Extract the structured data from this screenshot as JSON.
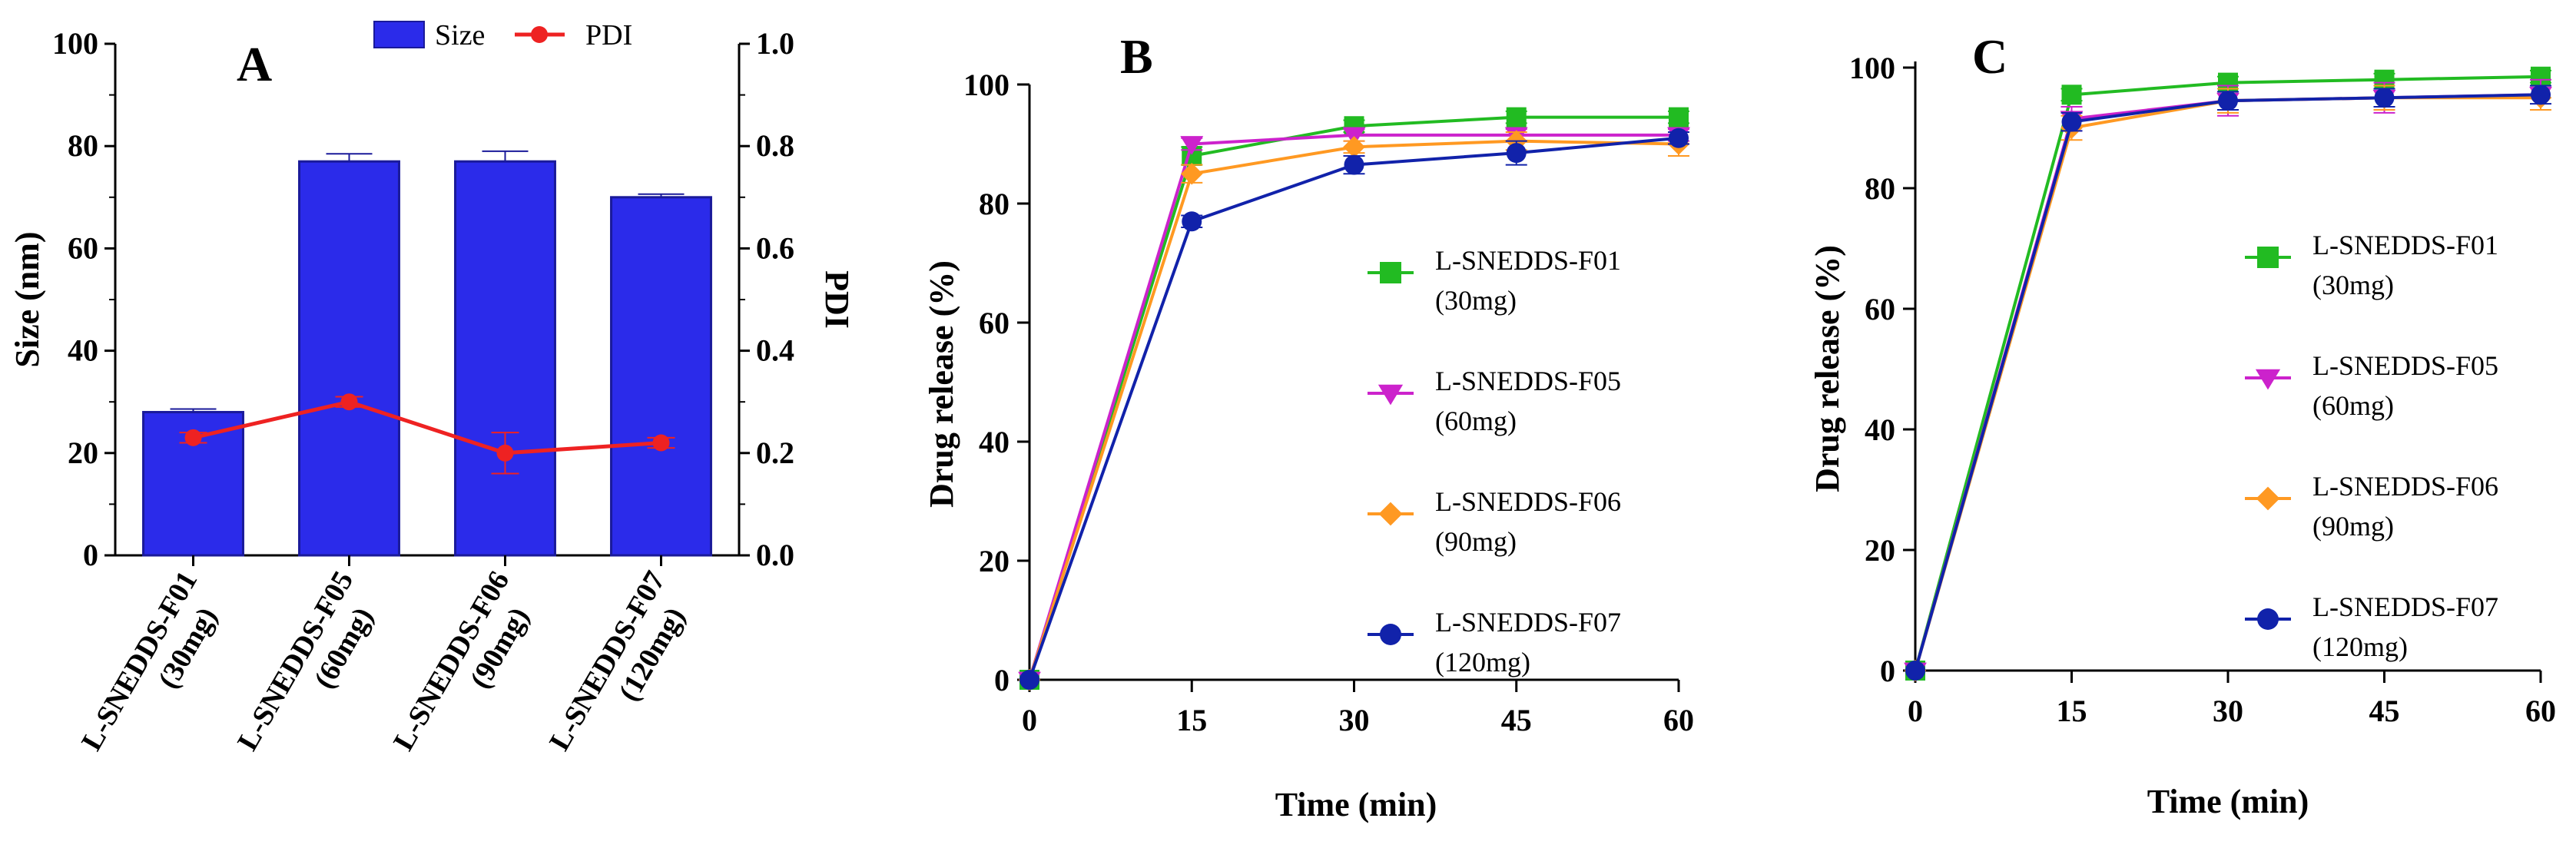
{
  "chart_data": [
    {
      "panel": "A",
      "type": "bar",
      "categories": [
        {
          "line1": "L-SNEDDS-F01",
          "line2": "(30mg)"
        },
        {
          "line1": "L-SNEDDS-F05",
          "line2": "(60mg)"
        },
        {
          "line1": "L-SNEDDS-F06",
          "line2": "(90mg)"
        },
        {
          "line1": "L-SNEDDS-F07",
          "line2": "(120mg)"
        }
      ],
      "series": [
        {
          "name": "Size",
          "kind": "bar",
          "axis": "left",
          "color": "#2b2bea",
          "values": [
            28,
            77,
            77,
            70
          ],
          "errors": [
            0.6,
            1.5,
            2.0,
            0.6
          ]
        },
        {
          "name": "PDI",
          "kind": "line",
          "axis": "right",
          "color": "#ee2222",
          "values": [
            0.23,
            0.3,
            0.2,
            0.22
          ],
          "errors": [
            0.01,
            0.01,
            0.04,
            0.01
          ]
        }
      ],
      "ylabel": "Size (nm)",
      "ylim": [
        0,
        100
      ],
      "yticks": [
        "0",
        "20",
        "40",
        "60",
        "80",
        "100"
      ],
      "y2label": "PDI",
      "y2lim": [
        0,
        1.0
      ],
      "y2ticks": [
        "0.0",
        "0.2",
        "0.4",
        "0.6",
        "0.8",
        "1.0"
      ],
      "legend": "top"
    },
    {
      "panel": "B",
      "type": "line",
      "xlabel": "Time (min)",
      "ylabel": "Drug release (%)",
      "x": [
        0,
        15,
        30,
        45,
        60
      ],
      "xticks": [
        "0",
        "15",
        "30",
        "45",
        "60"
      ],
      "xlim": [
        0,
        60
      ],
      "ylim": [
        0,
        100
      ],
      "yticks": [
        "0",
        "20",
        "40",
        "60",
        "80",
        "100"
      ],
      "legend": "center-right",
      "series": [
        {
          "name": "L-SNEDDS-F01",
          "dose": "(30mg)",
          "color": "#22bb22",
          "marker": "square",
          "values": [
            0,
            88,
            93,
            94.5,
            94.5
          ],
          "errors": [
            0,
            1.5,
            1.0,
            1.0,
            1.0
          ]
        },
        {
          "name": "L-SNEDDS-F05",
          "dose": "(60mg)",
          "color": "#cc22cc",
          "marker": "triangle-down",
          "values": [
            0,
            90,
            91.5,
            91.5,
            91.5
          ],
          "errors": [
            0,
            1.0,
            1.0,
            1.0,
            1.0
          ]
        },
        {
          "name": "L-SNEDDS-F06",
          "dose": "(90mg)",
          "color": "#ff9922",
          "marker": "diamond",
          "values": [
            0,
            85,
            89.5,
            90.5,
            90
          ],
          "errors": [
            0,
            1.5,
            1.0,
            1.5,
            2.0
          ]
        },
        {
          "name": "L-SNEDDS-F07",
          "dose": "(120mg)",
          "color": "#1122aa",
          "marker": "circle",
          "values": [
            0,
            77,
            86.5,
            88.5,
            91
          ],
          "errors": [
            0,
            1.0,
            1.5,
            2.0,
            1.0
          ]
        }
      ]
    },
    {
      "panel": "C",
      "type": "line",
      "xlabel": "Time (min)",
      "ylabel": "Drug release (%)",
      "x": [
        0,
        15,
        30,
        45,
        60
      ],
      "xticks": [
        "0",
        "15",
        "30",
        "45",
        "60"
      ],
      "xlim": [
        0,
        60
      ],
      "ylim": [
        0,
        100
      ],
      "yticks": [
        "0",
        "20",
        "40",
        "60",
        "80",
        "100"
      ],
      "legend": "center-right",
      "series": [
        {
          "name": "L-SNEDDS-F01",
          "dose": "(30mg)",
          "color": "#22bb22",
          "marker": "square",
          "values": [
            0,
            95.5,
            97.5,
            98,
            98.5
          ],
          "errors": [
            0,
            1.0,
            1.0,
            1.0,
            1.0
          ]
        },
        {
          "name": "L-SNEDDS-F05",
          "dose": "(60mg)",
          "color": "#cc22cc",
          "marker": "triangle-down",
          "values": [
            0,
            91.5,
            94.5,
            95,
            95.5
          ],
          "errors": [
            0,
            2.0,
            2.5,
            2.5,
            2.5
          ]
        },
        {
          "name": "L-SNEDDS-F06",
          "dose": "(90mg)",
          "color": "#ff9922",
          "marker": "diamond",
          "values": [
            0,
            90,
            94.5,
            95,
            95
          ],
          "errors": [
            0,
            2.0,
            2.0,
            2.0,
            2.0
          ]
        },
        {
          "name": "L-SNEDDS-F07",
          "dose": "(120mg)",
          "color": "#1122aa",
          "marker": "circle",
          "values": [
            0,
            91,
            94.5,
            95,
            95.5
          ],
          "errors": [
            0,
            1.5,
            1.5,
            1.5,
            1.5
          ]
        }
      ]
    }
  ]
}
